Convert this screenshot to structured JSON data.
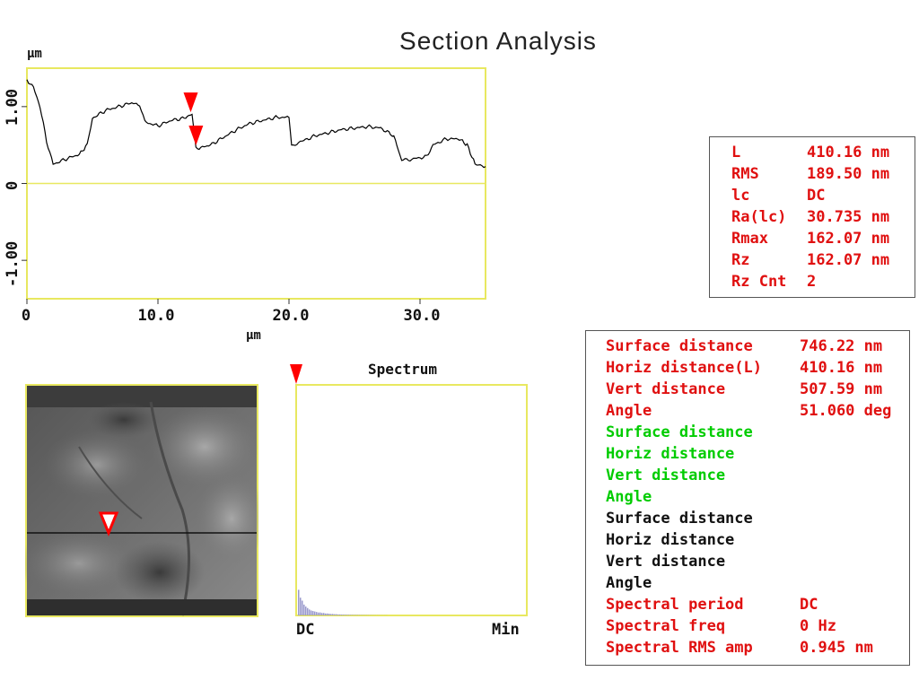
{
  "title": "Section Analysis",
  "profile": {
    "y_unit": "μm",
    "x_unit": "μm",
    "x_ticks": [
      "0",
      "10.0",
      "20.0",
      "30.0"
    ],
    "y_ticks": [
      "1.00",
      "0",
      "-1.00"
    ],
    "xlim": [
      0,
      35
    ],
    "ylim": [
      -1.5,
      1.5
    ],
    "profile_color": "#000000",
    "frame_color": "#e8e860",
    "marker_color": "#ff0000",
    "markers_x": [
      12.5,
      12.9
    ],
    "points": [
      [
        0,
        1.35
      ],
      [
        0.5,
        1.25
      ],
      [
        1,
        1.0
      ],
      [
        1.5,
        0.55
      ],
      [
        2,
        0.25
      ],
      [
        3,
        0.32
      ],
      [
        4,
        0.38
      ],
      [
        4.6,
        0.5
      ],
      [
        5,
        0.85
      ],
      [
        6,
        0.95
      ],
      [
        7,
        1.0
      ],
      [
        8,
        1.05
      ],
      [
        8.6,
        1.02
      ],
      [
        9,
        0.8
      ],
      [
        10,
        0.75
      ],
      [
        11,
        0.82
      ],
      [
        12,
        0.85
      ],
      [
        12.6,
        0.9
      ],
      [
        12.9,
        0.45
      ],
      [
        14,
        0.5
      ],
      [
        15,
        0.6
      ],
      [
        16,
        0.7
      ],
      [
        17,
        0.78
      ],
      [
        18,
        0.82
      ],
      [
        19,
        0.86
      ],
      [
        20,
        0.86
      ],
      [
        20.2,
        0.5
      ],
      [
        21,
        0.55
      ],
      [
        22,
        0.62
      ],
      [
        23,
        0.66
      ],
      [
        24,
        0.7
      ],
      [
        25,
        0.72
      ],
      [
        26,
        0.74
      ],
      [
        27,
        0.72
      ],
      [
        28,
        0.62
      ],
      [
        28.6,
        0.3
      ],
      [
        29.5,
        0.32
      ],
      [
        30.5,
        0.35
      ],
      [
        31,
        0.5
      ],
      [
        32,
        0.58
      ],
      [
        33,
        0.58
      ],
      [
        33.6,
        0.5
      ],
      [
        34.2,
        0.25
      ],
      [
        35,
        0.22
      ]
    ]
  },
  "image_panel": {
    "cursor_color": "#ff0000"
  },
  "spectrum": {
    "title": "Spectrum",
    "x_min_label": "DC",
    "x_max_label": "Min",
    "frame_color": "#e8e860",
    "bar_color": "#9999cc",
    "bars": [
      0.52,
      0.36,
      0.3,
      0.22,
      0.18,
      0.15,
      0.12,
      0.1,
      0.09,
      0.08,
      0.07,
      0.06,
      0.06,
      0.05,
      0.05,
      0.04,
      0.04,
      0.035,
      0.03,
      0.03,
      0.025,
      0.025,
      0.02,
      0.02,
      0.018,
      0.016,
      0.015,
      0.014,
      0.013,
      0.012,
      0.011,
      0.01,
      0.01,
      0.009,
      0.008,
      0.008,
      0.007,
      0.006,
      0.006,
      0.005,
      0.005,
      0.004,
      0.004,
      0.003,
      0.003,
      0.003,
      0.002,
      0.002,
      0.002,
      0.002
    ]
  },
  "roughness": [
    {
      "label": "L",
      "value": "410.16 nm"
    },
    {
      "label": "RMS",
      "value": "189.50 nm"
    },
    {
      "label": "lc",
      "value": "DC"
    },
    {
      "label": "Ra(lc)",
      "value": "30.735 nm"
    },
    {
      "label": "Rmax",
      "value": "162.07 nm"
    },
    {
      "label": "Rz",
      "value": "162.07 nm"
    },
    {
      "label": "Rz Cnt",
      "value": "2"
    }
  ],
  "measurements": [
    {
      "label": "Surface distance",
      "value": "746.22 nm",
      "color": "red"
    },
    {
      "label": "Horiz distance(L)",
      "value": "410.16 nm",
      "color": "red"
    },
    {
      "label": "Vert distance",
      "value": "507.59 nm",
      "color": "red"
    },
    {
      "label": "Angle",
      "value": "51.060 deg",
      "color": "red"
    },
    {
      "label": "Surface distance",
      "value": "",
      "color": "green"
    },
    {
      "label": "Horiz distance",
      "value": "",
      "color": "green"
    },
    {
      "label": "Vert distance",
      "value": "",
      "color": "green"
    },
    {
      "label": "Angle",
      "value": "",
      "color": "green"
    },
    {
      "label": "Surface distance",
      "value": "",
      "color": "black"
    },
    {
      "label": "Horiz distance",
      "value": "",
      "color": "black"
    },
    {
      "label": "Vert distance",
      "value": "",
      "color": "black"
    },
    {
      "label": "Angle",
      "value": "",
      "color": "black"
    },
    {
      "label": "Spectral period",
      "value": "DC",
      "color": "red"
    },
    {
      "label": "Spectral freq",
      "value": "0 Hz",
      "color": "red"
    },
    {
      "label": "Spectral RMS amp",
      "value": "0.945 nm",
      "color": "red"
    }
  ]
}
